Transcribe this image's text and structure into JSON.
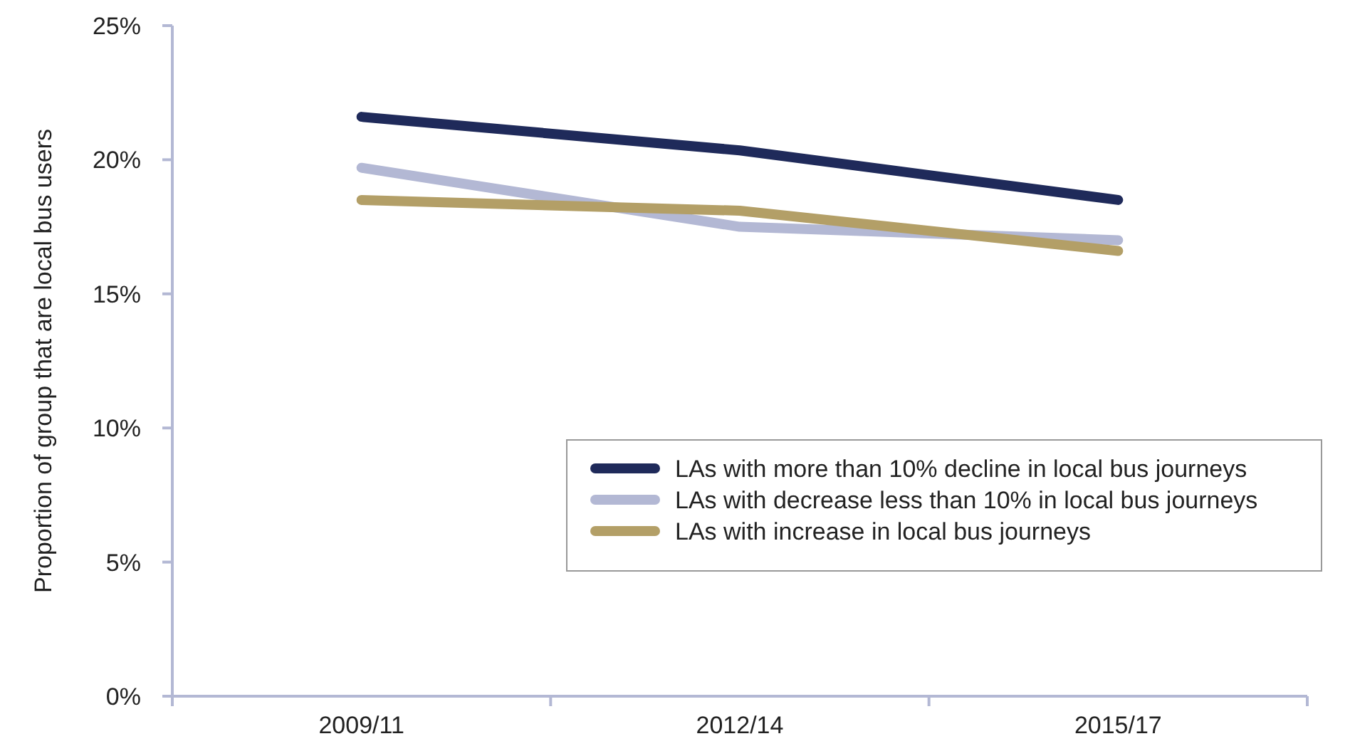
{
  "chart_data": {
    "type": "line",
    "ylabel": "Proportion of group that are local bus users",
    "categories": [
      "2009/11",
      "2012/14",
      "2015/17"
    ],
    "series": [
      {
        "name": "LAs with more than 10% decline in local bus journeys",
        "color": "#1f2a5a",
        "values": [
          21.6,
          20.35,
          18.5
        ]
      },
      {
        "name": "LAs with decrease less than 10% in local bus journeys",
        "color": "#b3b8d4",
        "values": [
          19.7,
          17.5,
          17.0
        ]
      },
      {
        "name": "LAs with increase in local bus journeys",
        "color": "#b39f67",
        "values": [
          18.5,
          18.1,
          16.6
        ]
      }
    ],
    "ylim": [
      0,
      25
    ],
    "yticks": [
      {
        "value": 0,
        "label": "0%"
      },
      {
        "value": 5,
        "label": "5%"
      },
      {
        "value": 10,
        "label": "10%"
      },
      {
        "value": 15,
        "label": "15%"
      },
      {
        "value": 20,
        "label": "20%"
      },
      {
        "value": 25,
        "label": "25%"
      }
    ],
    "grid": false,
    "legend": "bottom right",
    "marker": "none",
    "line_style": "solid"
  }
}
